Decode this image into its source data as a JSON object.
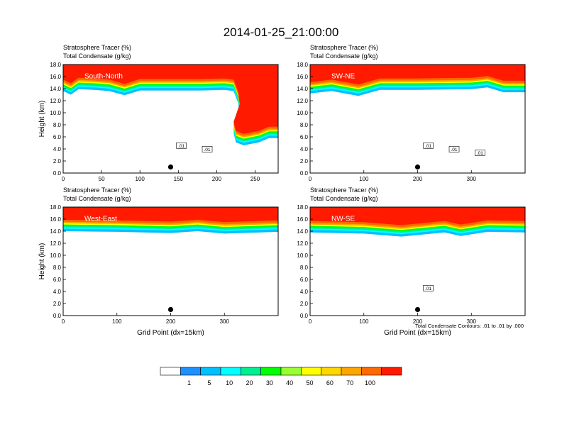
{
  "figure": {
    "title": "2014-01-25_21:00:00",
    "xlabel": "Grid Point (dx=15km)",
    "contour_note": "Total Condensate Contours: .01 to .01 by .000",
    "colors": {
      "background": "#ffffff",
      "strat_red": "#ff1a00",
      "strat_orange": "#ff5a00",
      "contour": "#000000"
    }
  },
  "colorbar": {
    "colors": [
      "#ffffff",
      "#1e90ff",
      "#00bfff",
      "#00ffff",
      "#00ee90",
      "#00ff00",
      "#9aff32",
      "#ffff00",
      "#ffd700",
      "#ffa500",
      "#ff6a00",
      "#ff1a00"
    ],
    "labels": [
      "1",
      "5",
      "10",
      "20",
      "30",
      "40",
      "50",
      "60",
      "70",
      "100"
    ]
  },
  "chart_data": [
    {
      "type": "heatmap",
      "panel_label": "South-North",
      "header_line1": "Stratosphere Tracer   (%)",
      "header_line2": "Total Condensate   (g/kg)",
      "ylabel": "Height (km)",
      "xlabel": "",
      "xlim": [
        0,
        280
      ],
      "ylim": [
        0,
        18
      ],
      "xticks": [
        "0",
        "50",
        "100",
        "150",
        "200",
        "250"
      ],
      "yticks": [
        "0.0",
        "2.0",
        "4.0",
        "6.0",
        "8.0",
        "10.0",
        "12.0",
        "14.0",
        "16.0",
        "18.0"
      ],
      "tropopause_km": [
        [
          0,
          15.0
        ],
        [
          10,
          14.4
        ],
        [
          20,
          15.3
        ],
        [
          40,
          15.2
        ],
        [
          60,
          15.0
        ],
        [
          80,
          14.3
        ],
        [
          100,
          15.1
        ],
        [
          140,
          15.1
        ],
        [
          180,
          15.1
        ],
        [
          210,
          15.2
        ],
        [
          222,
          15.0
        ],
        [
          228,
          13.0
        ],
        [
          230,
          11.0
        ],
        [
          226,
          9.5
        ],
        [
          222,
          8.0
        ],
        [
          225,
          6.5
        ],
        [
          235,
          6.0
        ],
        [
          255,
          6.5
        ],
        [
          268,
          7.2
        ]
      ],
      "contour_labels": [
        ".01",
        ".01"
      ],
      "marker_x": 140
    },
    {
      "type": "heatmap",
      "panel_label": "SW-NE",
      "header_line1": "Stratosphere Tracer   (%)",
      "header_line2": "Total Condensate   (g/kg)",
      "ylabel": "",
      "xlabel": "",
      "xlim": [
        0,
        400
      ],
      "ylim": [
        0,
        18
      ],
      "xticks": [
        "0",
        "100",
        "200",
        "300"
      ],
      "yticks": [
        "0.0",
        "2.0",
        "4.0",
        "6.0",
        "8.0",
        "10.0",
        "12.0",
        "14.0",
        "16.0",
        "18.0"
      ],
      "tropopause_km": [
        [
          0,
          14.6
        ],
        [
          40,
          15.0
        ],
        [
          90,
          14.2
        ],
        [
          130,
          15.2
        ],
        [
          200,
          15.2
        ],
        [
          300,
          15.3
        ],
        [
          330,
          15.6
        ],
        [
          360,
          14.8
        ],
        [
          400,
          14.8
        ]
      ],
      "contour_labels": [
        ".01",
        ".01",
        ".01"
      ],
      "marker_x": 200
    },
    {
      "type": "heatmap",
      "panel_label": "West-East",
      "header_line1": "Stratosphere Tracer   (%)",
      "header_line2": "Total Condensate   (g/kg)",
      "ylabel": "Height (km)",
      "xlabel": "Grid Point (dx=15km)",
      "xlim": [
        0,
        400
      ],
      "ylim": [
        0,
        18
      ],
      "xticks": [
        "0",
        "100",
        "200",
        "300"
      ],
      "yticks": [
        "0.0",
        "2.0",
        "4.0",
        "6.0",
        "8.0",
        "10.0",
        "12.0",
        "14.0",
        "16.0",
        "18.0"
      ],
      "tropopause_km": [
        [
          0,
          15.4
        ],
        [
          100,
          15.3
        ],
        [
          200,
          15.1
        ],
        [
          250,
          15.4
        ],
        [
          300,
          15.0
        ],
        [
          400,
          15.3
        ]
      ],
      "contour_labels": [],
      "marker_x": 200
    },
    {
      "type": "heatmap",
      "panel_label": "NW-SE",
      "header_line1": "Stratosphere Tracer   (%)",
      "header_line2": "Total Condensate   (g/kg)",
      "ylabel": "",
      "xlabel": "Grid Point (dx=15km)",
      "xlim": [
        0,
        400
      ],
      "ylim": [
        0,
        18
      ],
      "xticks": [
        "0",
        "100",
        "200",
        "300"
      ],
      "yticks": [
        "0.0",
        "2.0",
        "4.0",
        "6.0",
        "8.0",
        "10.0",
        "12.0",
        "14.0",
        "16.0",
        "18.0"
      ],
      "tropopause_km": [
        [
          0,
          15.2
        ],
        [
          100,
          15.0
        ],
        [
          170,
          14.5
        ],
        [
          250,
          15.2
        ],
        [
          280,
          14.6
        ],
        [
          330,
          15.3
        ],
        [
          400,
          15.2
        ]
      ],
      "contour_labels": [
        ".01"
      ],
      "marker_x": 200
    }
  ]
}
